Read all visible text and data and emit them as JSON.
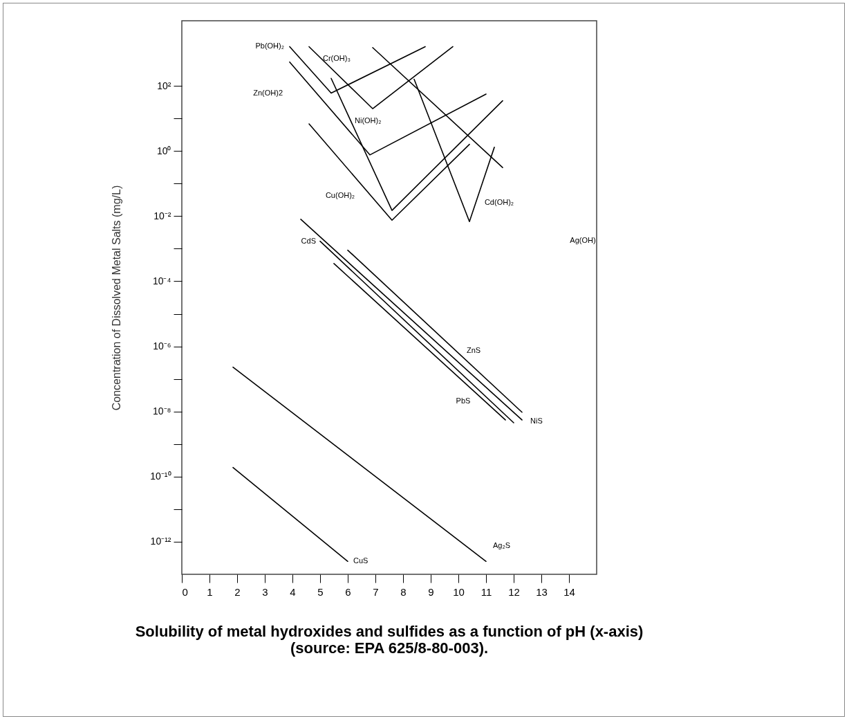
{
  "chart_data": {
    "type": "line",
    "title": "Solubility of metal hydroxides and sulfides as a function of pH (x-axis) (source: EPA 625/8-80-003).",
    "ylabel": "Concentration of Dissolved Metal Salts (mg/L)",
    "log": "y",
    "grid": false,
    "legend": false,
    "xlim": [
      0,
      15
    ],
    "xticks": [
      0,
      1,
      2,
      3,
      4,
      5,
      6,
      7,
      8,
      9,
      10,
      11,
      12,
      13,
      14
    ],
    "ylim": [
      1e-13,
      10000
    ],
    "yticks": [
      {
        "value": 100,
        "label": "10²"
      },
      {
        "value": 10,
        "label": null
      },
      {
        "value": 1,
        "label": "10⁰"
      },
      {
        "value": 0.1,
        "label": null
      },
      {
        "value": 0.01,
        "label": "10⁻²"
      },
      {
        "value": 0.001,
        "label": null
      },
      {
        "value": 0.0001,
        "label": "10⁻⁴"
      },
      {
        "value": 1e-05,
        "label": null
      },
      {
        "value": 1e-06,
        "label": "10⁻⁶"
      },
      {
        "value": 1e-07,
        "label": null
      },
      {
        "value": 1e-08,
        "label": "10⁻⁸"
      },
      {
        "value": 1e-09,
        "label": null
      },
      {
        "value": 1e-10,
        "label": "10⁻¹⁰"
      },
      {
        "value": 1e-11,
        "label": null
      },
      {
        "value": 1e-12,
        "label": "10⁻¹²"
      }
    ],
    "series": [
      {
        "name": "Pb(OH)₂",
        "color": "#000000",
        "x": [
          3.9,
          5.4,
          8.8
        ],
        "values": [
          1600,
          60,
          1600
        ]
      },
      {
        "name": "Cr(OH)₃",
        "color": "#000000",
        "x": [
          4.6,
          6.9,
          9.8
        ],
        "values": [
          1600,
          20,
          1600
        ]
      },
      {
        "name": "Zn(OH)2",
        "color": "#000000",
        "x": [
          3.9,
          6.8,
          11.0
        ],
        "values": [
          540,
          0.76,
          56
        ]
      },
      {
        "name": "Ni(OH)₂",
        "color": "#000000",
        "x": [
          5.4,
          7.6,
          11.6
        ],
        "values": [
          170,
          0.015,
          35
        ]
      },
      {
        "name": "Cu(OH)₂",
        "color": "#000000",
        "x": [
          4.6,
          7.6,
          10.4
        ],
        "values": [
          6.8,
          0.0075,
          1.6
        ]
      },
      {
        "name": "Cd(OH)₂",
        "color": "#000000",
        "x": [
          8.4,
          10.4,
          11.3
        ],
        "values": [
          160,
          0.0068,
          1.3
        ]
      },
      {
        "color": "#000000",
        "x": [
          6.9,
          11.6
        ],
        "values": [
          1500,
          0.31
        ]
      },
      {
        "name": "NiS",
        "color": "#000000",
        "x": [
          4.3,
          12.3
        ],
        "values": [
          0.008,
          5.5e-09
        ]
      },
      {
        "name": "CdS",
        "color": "#000000",
        "x": [
          5.0,
          12.0
        ],
        "values": [
          0.0017,
          4.5e-09
        ]
      },
      {
        "name": "ZnS",
        "color": "#000000",
        "x": [
          6.0,
          12.3
        ],
        "values": [
          0.0009,
          9.5e-09
        ]
      },
      {
        "name": "PbS",
        "color": "#000000",
        "x": [
          5.5,
          11.7
        ],
        "values": [
          0.00035,
          5.5e-09
        ]
      },
      {
        "name": "Ag₂S",
        "color": "#000000",
        "x": [
          1.85,
          11.0
        ],
        "values": [
          2.3e-07,
          2.5e-13
        ]
      },
      {
        "name": "CuS",
        "color": "#000000",
        "x": [
          1.85,
          6.0
        ],
        "values": [
          1.9e-10,
          2.5e-13
        ]
      }
    ],
    "annotations": [
      "Ag(OH)"
    ]
  }
}
